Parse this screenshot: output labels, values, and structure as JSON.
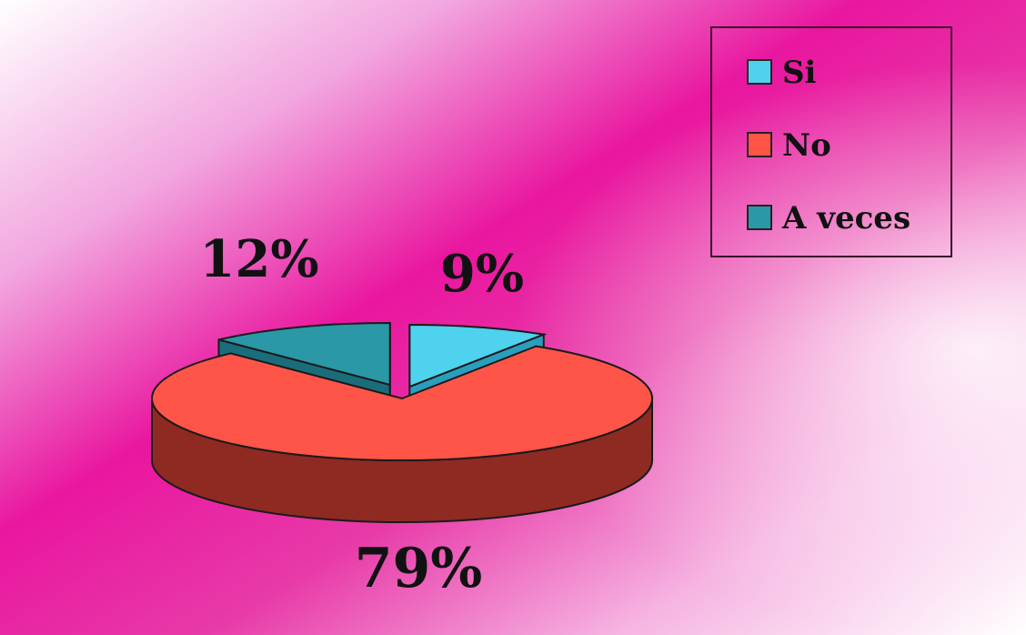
{
  "chart_data": {
    "type": "pie",
    "categories": [
      "Si",
      "No",
      "A veces"
    ],
    "values": [
      9,
      79,
      12
    ],
    "value_labels": [
      "9%",
      "79%",
      "12%"
    ],
    "colors": {
      "Si": "#4fd2ee",
      "No": "#ff5548",
      "A veces": "#2a98a6"
    },
    "side_colors": {
      "Si": "#2a9fbd",
      "No": "#8e2a22",
      "A veces": "#1b6d7a"
    },
    "legend_position": "top-right",
    "background": "magenta-white-gradient",
    "three_d": true
  }
}
